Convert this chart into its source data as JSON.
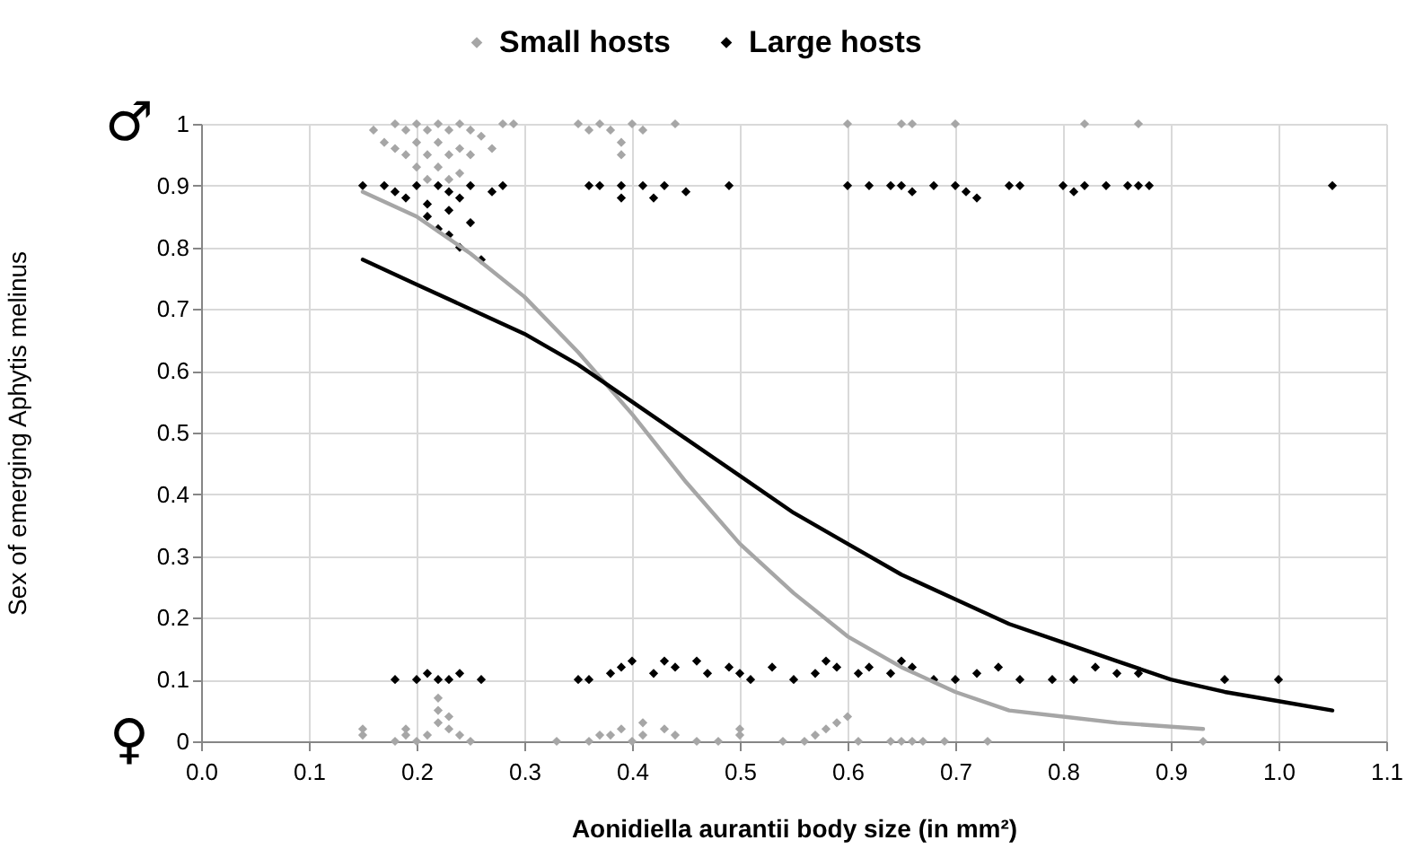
{
  "chart_data": {
    "type": "scatter",
    "xlabel": "Aonidiella aurantii  body size (in mm²)",
    "ylabel": "Sex of emerging Aphytis melinus",
    "xlim": [
      0,
      1.1
    ],
    "xticks": [
      {
        "value": 0,
        "label": "0.0"
      },
      0.1,
      0.2,
      0.3,
      0.4,
      0.5,
      0.6,
      0.7,
      0.8,
      0.9,
      {
        "value": 1,
        "label": "1.0"
      },
      1.1
    ],
    "ylim": [
      0,
      1
    ],
    "yticks": [
      0,
      0.1,
      0.2,
      0.3,
      0.4,
      0.5,
      0.6,
      0.7,
      0.8,
      0.9,
      1
    ],
    "grid": true,
    "legend": "top",
    "marker": "diamond",
    "annotations": [
      "♂",
      "♀"
    ],
    "series": [
      {
        "name": "Small hosts",
        "color": "#a6a6a6",
        "x": [
          0.16,
          0.17,
          0.18,
          0.18,
          0.19,
          0.19,
          0.2,
          0.2,
          0.2,
          0.21,
          0.21,
          0.21,
          0.22,
          0.22,
          0.22,
          0.23,
          0.23,
          0.23,
          0.24,
          0.24,
          0.24,
          0.25,
          0.25,
          0.26,
          0.27,
          0.28,
          0.29,
          0.35,
          0.36,
          0.37,
          0.38,
          0.39,
          0.39,
          0.4,
          0.41,
          0.44,
          0.6,
          0.65,
          0.66,
          0.7,
          0.82,
          0.87,
          0.15,
          0.15,
          0.18,
          0.19,
          0.19,
          0.2,
          0.21,
          0.22,
          0.22,
          0.22,
          0.23,
          0.23,
          0.24,
          0.25,
          0.33,
          0.36,
          0.37,
          0.38,
          0.39,
          0.4,
          0.41,
          0.41,
          0.43,
          0.44,
          0.46,
          0.48,
          0.5,
          0.5,
          0.54,
          0.56,
          0.57,
          0.58,
          0.59,
          0.6,
          0.61,
          0.64,
          0.65,
          0.66,
          0.67,
          0.69,
          0.73,
          0.93
        ],
        "values": [
          0.99,
          0.97,
          1,
          0.96,
          0.99,
          0.95,
          1,
          0.97,
          0.93,
          0.99,
          0.95,
          0.91,
          1,
          0.97,
          0.93,
          0.99,
          0.95,
          0.91,
          1,
          0.96,
          0.92,
          0.99,
          0.95,
          0.98,
          0.96,
          1,
          1,
          1,
          0.99,
          1,
          0.99,
          0.97,
          0.95,
          1,
          0.99,
          1,
          1,
          1,
          1,
          1,
          1,
          1,
          0.01,
          0.02,
          0,
          0.01,
          0.02,
          0,
          0.01,
          0.03,
          0.05,
          0.07,
          0.02,
          0.04,
          0.01,
          0,
          0,
          0,
          0.01,
          0.01,
          0.02,
          0,
          0.01,
          0.03,
          0.02,
          0.01,
          0,
          0,
          0.01,
          0.02,
          0,
          0,
          0.01,
          0.02,
          0.03,
          0.04,
          0,
          0,
          0,
          0,
          0,
          0,
          0,
          0
        ]
      },
      {
        "name": "Large hosts",
        "color": "#000000",
        "x": [
          0.15,
          0.17,
          0.18,
          0.19,
          0.2,
          0.21,
          0.21,
          0.22,
          0.22,
          0.23,
          0.23,
          0.23,
          0.24,
          0.24,
          0.25,
          0.25,
          0.26,
          0.27,
          0.28,
          0.36,
          0.37,
          0.39,
          0.39,
          0.41,
          0.42,
          0.43,
          0.45,
          0.49,
          0.6,
          0.62,
          0.64,
          0.65,
          0.66,
          0.68,
          0.7,
          0.71,
          0.72,
          0.75,
          0.76,
          0.8,
          0.81,
          0.82,
          0.84,
          0.86,
          0.87,
          0.88,
          1.05,
          0.18,
          0.2,
          0.21,
          0.22,
          0.23,
          0.24,
          0.26,
          0.35,
          0.36,
          0.38,
          0.39,
          0.4,
          0.42,
          0.43,
          0.44,
          0.46,
          0.47,
          0.49,
          0.5,
          0.51,
          0.53,
          0.55,
          0.57,
          0.58,
          0.59,
          0.61,
          0.62,
          0.64,
          0.65,
          0.66,
          0.68,
          0.7,
          0.72,
          0.74,
          0.76,
          0.79,
          0.81,
          0.83,
          0.85,
          0.87,
          0.95,
          1.0
        ],
        "values": [
          0.9,
          0.9,
          0.89,
          0.88,
          0.9,
          0.87,
          0.85,
          0.9,
          0.83,
          0.89,
          0.86,
          0.82,
          0.88,
          0.8,
          0.9,
          0.84,
          0.78,
          0.89,
          0.9,
          0.9,
          0.9,
          0.9,
          0.88,
          0.9,
          0.88,
          0.9,
          0.89,
          0.9,
          0.9,
          0.9,
          0.9,
          0.9,
          0.89,
          0.9,
          0.9,
          0.89,
          0.88,
          0.9,
          0.9,
          0.9,
          0.89,
          0.9,
          0.9,
          0.9,
          0.9,
          0.9,
          0.9,
          0.1,
          0.1,
          0.11,
          0.1,
          0.1,
          0.11,
          0.1,
          0.1,
          0.1,
          0.11,
          0.12,
          0.13,
          0.11,
          0.13,
          0.12,
          0.13,
          0.11,
          0.12,
          0.11,
          0.1,
          0.12,
          0.1,
          0.11,
          0.13,
          0.12,
          0.11,
          0.12,
          0.11,
          0.13,
          0.12,
          0.1,
          0.1,
          0.11,
          0.12,
          0.1,
          0.1,
          0.1,
          0.12,
          0.11,
          0.11,
          0.1,
          0.1
        ]
      },
      {
        "color": "#a6a6a6",
        "type": "line",
        "marker": "none",
        "x": [
          0.15,
          0.2,
          0.25,
          0.3,
          0.35,
          0.4,
          0.45,
          0.5,
          0.55,
          0.6,
          0.65,
          0.7,
          0.75,
          0.8,
          0.85,
          0.93
        ],
        "values": [
          0.89,
          0.85,
          0.79,
          0.72,
          0.63,
          0.53,
          0.42,
          0.32,
          0.24,
          0.17,
          0.12,
          0.08,
          0.05,
          0.04,
          0.03,
          0.02
        ]
      },
      {
        "color": "#000000",
        "type": "line",
        "marker": "none",
        "x": [
          0.15,
          0.2,
          0.25,
          0.3,
          0.35,
          0.4,
          0.45,
          0.5,
          0.55,
          0.6,
          0.65,
          0.7,
          0.75,
          0.8,
          0.85,
          0.9,
          0.95,
          1.0,
          1.05
        ],
        "values": [
          0.78,
          0.74,
          0.7,
          0.66,
          0.61,
          0.55,
          0.49,
          0.43,
          0.37,
          0.32,
          0.27,
          0.23,
          0.19,
          0.16,
          0.13,
          0.1,
          0.08,
          0.065,
          0.05
        ]
      }
    ]
  }
}
